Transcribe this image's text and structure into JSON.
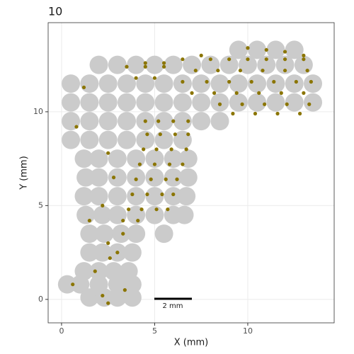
{
  "chart_data": {
    "type": "scatter",
    "title": "10",
    "x_label": "X (mm)",
    "y_label": "Y (mm)",
    "xlim": [
      -0.72,
      14.64
    ],
    "ylim": [
      -1.25,
      14.75
    ],
    "xticks": [
      0,
      5,
      10
    ],
    "yticks": [
      0,
      5,
      10
    ],
    "grid": true,
    "annotation": "2 mm",
    "series": [
      {
        "color": "#cbcbcb",
        "x": [
          2,
          3,
          4,
          5,
          6,
          7,
          8,
          9,
          10,
          11,
          12,
          13,
          0.5,
          1.5,
          2.5,
          3.5,
          4.5,
          5.5,
          6.5,
          7.5,
          8.5,
          9.5,
          10.5,
          11.5,
          12.5,
          13.5,
          0.5,
          1.5,
          2.5,
          3.5,
          4.5,
          5.5,
          6.5,
          7.5,
          8.5,
          9.5,
          10.5,
          11.5,
          12.5,
          13.5,
          0.5,
          1.5,
          2.5,
          3.5,
          4.5,
          5.5,
          6.5,
          7.5,
          8.5,
          9.5,
          10.5,
          11.5,
          12.5,
          0.5,
          1.5,
          2.5,
          3.5,
          4.5,
          5.5,
          6.5,
          1.2,
          2,
          3,
          4,
          5,
          6,
          6.8,
          1.3,
          2,
          3,
          4,
          5,
          6,
          6.8,
          1.2,
          2,
          3,
          4,
          5,
          6,
          6.7,
          1.3,
          2.2,
          3,
          4,
          5,
          6,
          6.6,
          1.5,
          2.3,
          3.2,
          4,
          5.5,
          1.5,
          2.2,
          3,
          3.8,
          1.2,
          2,
          2.8,
          3.6,
          0.3,
          1,
          2,
          3,
          3.8,
          1.5,
          2.3,
          3,
          3.8
        ],
        "values": [
          12.5,
          12.5,
          12.5,
          12.5,
          12.5,
          12.5,
          12.5,
          12.5,
          12.5,
          12.5,
          12.5,
          12.5,
          11.5,
          11.5,
          11.5,
          11.5,
          11.5,
          11.5,
          11.5,
          11.5,
          11.5,
          11.5,
          11.5,
          11.5,
          11.5,
          11.5,
          10.5,
          10.5,
          10.5,
          10.5,
          10.5,
          10.5,
          10.5,
          10.5,
          10.5,
          10.5,
          10.5,
          10.5,
          10.5,
          10.5,
          9.5,
          9.5,
          9.5,
          9.5,
          9.5,
          9.5,
          9.5,
          9.5,
          9.5,
          13.3,
          13.3,
          13.3,
          13.3,
          8.5,
          8.5,
          8.5,
          8.5,
          8.5,
          8.5,
          8.5,
          7.5,
          7.5,
          7.5,
          7.5,
          7.5,
          7.5,
          7.5,
          6.5,
          6.5,
          6.5,
          6.5,
          6.5,
          6.5,
          6.5,
          5.5,
          5.5,
          5.5,
          5.5,
          5.5,
          5.5,
          5.5,
          4.5,
          4.5,
          4.5,
          4.5,
          4.5,
          4.5,
          4.5,
          3.5,
          3.5,
          3.5,
          3.5,
          3.5,
          2.5,
          2.5,
          2.5,
          2.5,
          1.5,
          1.5,
          1.5,
          1.5,
          0.8,
          0.8,
          0.8,
          0.8,
          0.8,
          0.1,
          0.1,
          0.1,
          0.1
        ]
      },
      {
        "color": "#8b7500",
        "x": [
          8,
          9,
          10,
          11,
          12,
          13,
          7.2,
          8.4,
          9.6,
          10.8,
          12,
          13.2,
          6.5,
          7.8,
          9,
          10.2,
          11.4,
          12.6,
          13.4,
          7,
          8.2,
          9.4,
          10.6,
          11.8,
          13,
          8.5,
          9.7,
          10.9,
          12.1,
          13.3,
          9.2,
          10.4,
          11.6,
          12.8,
          3.5,
          4.5,
          5.5,
          4,
          5,
          4.5,
          5.5,
          6.5,
          7.5,
          10,
          11,
          12,
          13,
          4.5,
          5.2,
          6,
          6.8,
          4.6,
          5.3,
          6.1,
          6.8,
          4.4,
          5.1,
          5.9,
          6.7,
          4.2,
          5,
          5.8,
          6.5,
          4,
          4.8,
          5.6,
          6.2,
          3.8,
          4.6,
          5.4,
          6,
          3.6,
          4.3,
          5.1,
          5.7,
          3.3,
          4.1,
          1.2,
          0.8,
          2.5,
          2.8,
          2.2,
          1.5,
          2.5,
          3,
          1.8,
          0.6,
          2.2,
          2.5,
          3.4,
          2.6,
          3.3
        ],
        "values": [
          12.8,
          12.8,
          12.8,
          12.8,
          12.8,
          12.8,
          12.2,
          12.2,
          12.2,
          12.2,
          12.2,
          12.2,
          11.6,
          11.6,
          11.6,
          11.6,
          11.6,
          11.6,
          11.6,
          11,
          11,
          11,
          11,
          11,
          11,
          10.4,
          10.4,
          10.4,
          10.4,
          10.4,
          9.9,
          9.9,
          9.9,
          9.9,
          12.4,
          12.4,
          12.4,
          11.8,
          11.8,
          12.6,
          12.6,
          12.8,
          13,
          13.4,
          13.3,
          13.2,
          13,
          9.5,
          9.5,
          9.5,
          9.5,
          8.8,
          8.8,
          8.8,
          8.8,
          8,
          8,
          8,
          8,
          7.2,
          7.2,
          7.2,
          7.2,
          6.4,
          6.4,
          6.4,
          6.4,
          5.6,
          5.6,
          5.6,
          5.6,
          4.8,
          4.8,
          4.8,
          4.8,
          4.2,
          4.2,
          11.3,
          9.2,
          7.8,
          6.5,
          5,
          4.2,
          3,
          2.5,
          1.5,
          0.8,
          0.2,
          -0.2,
          0.5,
          2.2,
          3.5
        ]
      }
    ]
  }
}
